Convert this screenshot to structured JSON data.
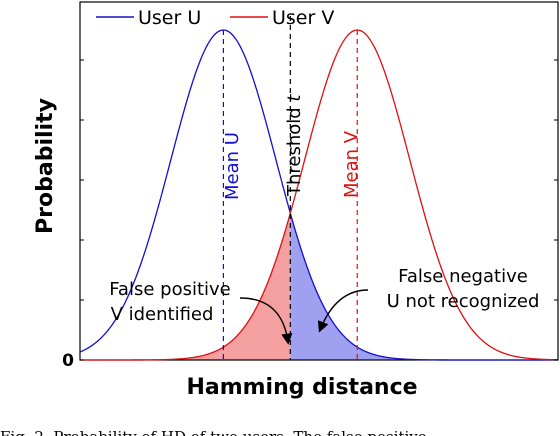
{
  "chart_data": {
    "type": "line",
    "title": "",
    "xlabel": "Hamming distance",
    "ylabel": "Probability",
    "y_tick_labels": [
      "0"
    ],
    "xlim": [
      0,
      1
    ],
    "ylim": [
      0,
      1
    ],
    "grid": false,
    "legend": {
      "position": "top",
      "entries": [
        "User U",
        "User V"
      ]
    },
    "colors": {
      "user_u": "#1010d0",
      "user_v": "#e01010",
      "fp_fill": "#f4a0a0",
      "fn_fill": "#a0a0f0",
      "threshold": "#000000"
    },
    "series": [
      {
        "name": "User U",
        "mean": 0.3,
        "sd": 0.11,
        "peak": 1.0
      },
      {
        "name": "User V",
        "mean": 0.58,
        "sd": 0.11,
        "peak": 1.0
      }
    ],
    "threshold": 0.44,
    "annotations": {
      "mean_u": "Mean U",
      "mean_v": "Mean V",
      "threshold_prefix": "Threshold ",
      "threshold_var": "t",
      "fp_line1": "False positive",
      "fp_line2": "V identified",
      "fn_line1": "False negative",
      "fn_line2": "U not recognized"
    }
  },
  "caption": "Fig. 2. Probability of HD of two users. The false positive"
}
